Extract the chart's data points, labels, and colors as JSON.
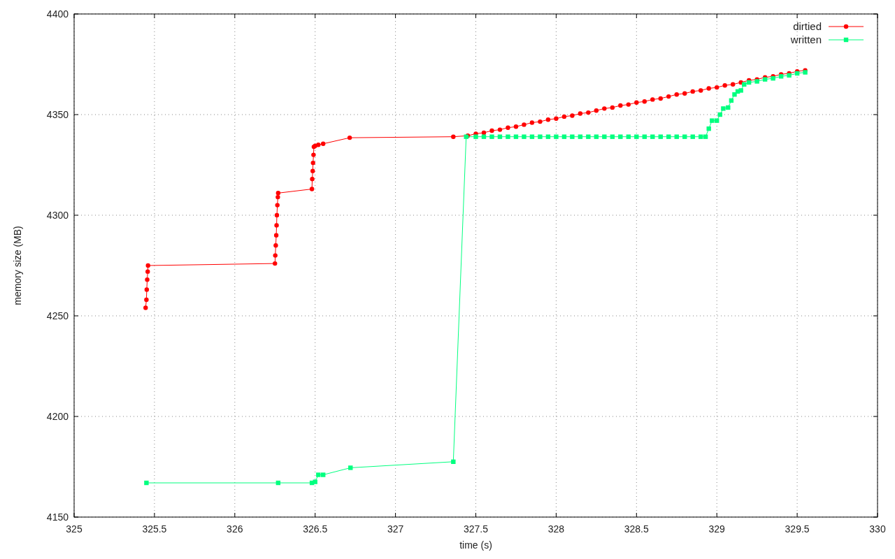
{
  "chart_data": {
    "type": "line",
    "xlabel": "time (s)",
    "ylabel": "memory size (MB)",
    "xlim": [
      325,
      330
    ],
    "xticks": [
      325,
      325.5,
      326,
      326.5,
      327,
      327.5,
      328,
      328.5,
      329,
      329.5,
      330
    ],
    "ylim": [
      4150,
      4400
    ],
    "yticks": [
      4150,
      4200,
      4250,
      4300,
      4350,
      4400
    ],
    "grid": true,
    "legend": "top right",
    "line_style": "solid",
    "series": [
      {
        "name": "dirtied",
        "color": "#ff0000",
        "marker": "circle",
        "x": [
          325.445,
          325.45,
          325.452,
          325.455,
          325.458,
          325.46,
          326.25,
          326.252,
          326.255,
          326.258,
          326.26,
          326.262,
          326.265,
          326.268,
          326.27,
          326.48,
          326.482,
          326.485,
          326.487,
          326.49,
          326.492,
          326.5,
          326.52,
          326.55,
          326.715,
          327.36,
          327.45,
          327.5,
          327.55,
          327.6,
          327.65,
          327.7,
          327.75,
          327.8,
          327.85,
          327.9,
          327.95,
          328.0,
          328.05,
          328.1,
          328.15,
          328.2,
          328.25,
          328.3,
          328.35,
          328.4,
          328.45,
          328.5,
          328.55,
          328.6,
          328.65,
          328.7,
          328.75,
          328.8,
          328.85,
          328.9,
          328.95,
          329.0,
          329.05,
          329.1,
          329.15,
          329.2,
          329.25,
          329.3,
          329.35,
          329.4,
          329.45,
          329.5,
          329.55
        ],
        "values": [
          4254,
          4258,
          4263,
          4268,
          4272,
          4275,
          4276,
          4280,
          4285,
          4290,
          4295,
          4300,
          4305,
          4309,
          4311,
          4313,
          4318,
          4322,
          4326,
          4330,
          4334,
          4334.5,
          4335,
          4335.5,
          4338.5,
          4339,
          4339.5,
          4340.5,
          4341,
          4342,
          4342.5,
          4343.5,
          4344,
          4345,
          4346,
          4346.5,
          4347.5,
          4348,
          4349,
          4349.5,
          4350.5,
          4351,
          4352,
          4353,
          4353.5,
          4354.5,
          4355,
          4356,
          4356.5,
          4357.5,
          4358,
          4359,
          4360,
          4360.5,
          4361.5,
          4362,
          4363,
          4363.5,
          4364.5,
          4365,
          4366,
          4367,
          4367.5,
          4368.5,
          4369,
          4370,
          4370.5,
          4371.5,
          4372
        ]
      },
      {
        "name": "written",
        "color": "#00ff7f",
        "marker": "square",
        "x": [
          325.45,
          326.27,
          326.48,
          326.5,
          326.52,
          326.55,
          326.72,
          327.36,
          327.44,
          327.5,
          327.55,
          327.6,
          327.65,
          327.7,
          327.75,
          327.8,
          327.85,
          327.9,
          327.95,
          328.0,
          328.05,
          328.1,
          328.15,
          328.2,
          328.25,
          328.3,
          328.35,
          328.4,
          328.45,
          328.5,
          328.55,
          328.6,
          328.65,
          328.7,
          328.75,
          328.8,
          328.85,
          328.9,
          328.93,
          328.95,
          328.97,
          329.0,
          329.02,
          329.04,
          329.07,
          329.09,
          329.11,
          329.13,
          329.15,
          329.17,
          329.2,
          329.25,
          329.3,
          329.35,
          329.4,
          329.45,
          329.5,
          329.55
        ],
        "values": [
          4167,
          4167,
          4167,
          4167.5,
          4171,
          4171,
          4174.5,
          4177.5,
          4339,
          4339,
          4339,
          4339,
          4339,
          4339,
          4339,
          4339,
          4339,
          4339,
          4339,
          4339,
          4339,
          4339,
          4339,
          4339,
          4339,
          4339,
          4339,
          4339,
          4339,
          4339,
          4339,
          4339,
          4339,
          4339,
          4339,
          4339,
          4339,
          4339,
          4339,
          4343,
          4347,
          4347,
          4350,
          4353,
          4353.5,
          4357,
          4360,
          4361.5,
          4362,
          4365,
          4366,
          4366.5,
          4367.5,
          4368,
          4369,
          4369.5,
          4370.5,
          4371
        ]
      }
    ]
  }
}
